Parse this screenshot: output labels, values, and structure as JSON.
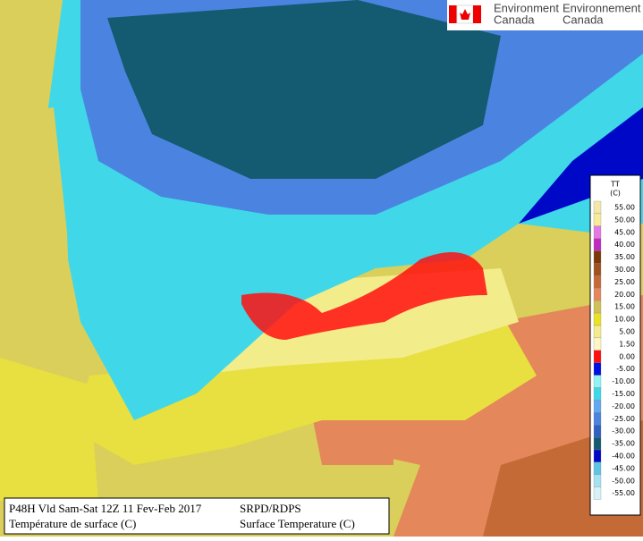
{
  "header": {
    "agency_en": "Environment",
    "agency_fr": "Environnement",
    "country_en": "Canada",
    "country_fr": "Canada"
  },
  "legend": {
    "title": "TT",
    "unit": "(C)",
    "items": [
      {
        "label": "55.00",
        "color": "#f3e8a6"
      },
      {
        "label": "50.00",
        "color": "#f7ec98"
      },
      {
        "label": "45.00",
        "color": "#e478e4"
      },
      {
        "label": "40.00",
        "color": "#c02cc0"
      },
      {
        "label": "35.00",
        "color": "#7a3a08"
      },
      {
        "label": "30.00",
        "color": "#a0521e"
      },
      {
        "label": "25.00",
        "color": "#c46a36"
      },
      {
        "label": "20.00",
        "color": "#e4875a"
      },
      {
        "label": "15.00",
        "color": "#cfc058"
      },
      {
        "label": "10.00",
        "color": "#ece224"
      },
      {
        "label": "5.00",
        "color": "#f3ec8a"
      },
      {
        "label": "1.50",
        "color": "#fff6c4"
      },
      {
        "label": "0.00",
        "color": "#ff1010"
      },
      {
        "label": "-5.00",
        "color": "#0010e0"
      },
      {
        "label": "-10.00",
        "color": "#90f4f4"
      },
      {
        "label": "-15.00",
        "color": "#40d8e8"
      },
      {
        "label": "-20.00",
        "color": "#60a8f0"
      },
      {
        "label": "-25.00",
        "color": "#4a84e0"
      },
      {
        "label": "-30.00",
        "color": "#3060c4"
      },
      {
        "label": "-35.00",
        "color": "#145a70"
      },
      {
        "label": "-40.00",
        "color": "#0008c8"
      },
      {
        "label": "-45.00",
        "color": "#60c4e4"
      },
      {
        "label": "-50.00",
        "color": "#a4e2f2"
      },
      {
        "label": "-55.00",
        "color": "#d4f2f8"
      }
    ]
  },
  "footer": {
    "line1_left": "P48H Vld Sam-Sat 12Z 11 Fev-Feb 2017",
    "line2_left": "Température de surface (C)",
    "line1_right": "SRPD/RDPS",
    "line2_right": "Surface Temperature (C)"
  }
}
